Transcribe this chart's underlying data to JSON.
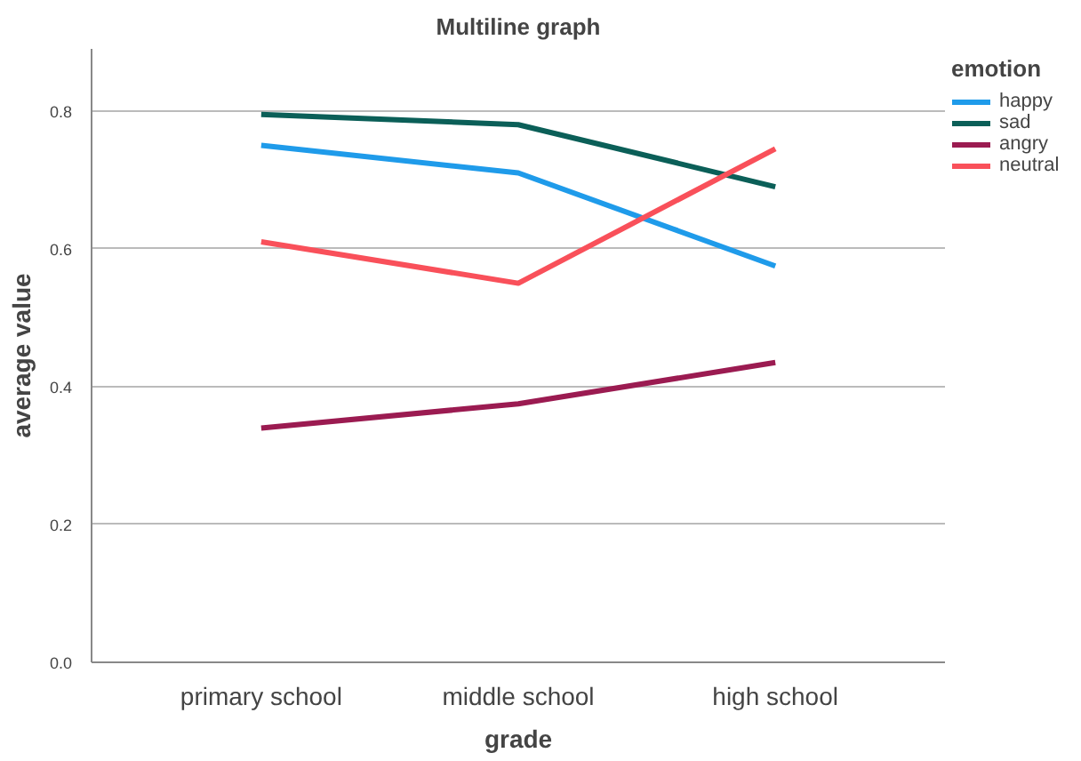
{
  "chart_data": {
    "type": "line",
    "title": "Multiline graph",
    "xlabel": "grade",
    "ylabel": "average value",
    "legend_title": "emotion",
    "categories": [
      "primary school",
      "middle school",
      "high school"
    ],
    "series": [
      {
        "name": "happy",
        "color": "#1f9bea",
        "values": [
          0.75,
          0.71,
          0.575
        ]
      },
      {
        "name": "sad",
        "color": "#0b5f58",
        "values": [
          0.795,
          0.78,
          0.69
        ]
      },
      {
        "name": "angry",
        "color": "#9b1b51",
        "values": [
          0.34,
          0.375,
          0.435
        ]
      },
      {
        "name": "neutral",
        "color": "#f9505a",
        "values": [
          0.61,
          0.55,
          0.745
        ]
      }
    ],
    "ylim": [
      0,
      0.89
    ],
    "yticks": [
      {
        "value": 0,
        "label": "0.0"
      },
      {
        "value": 0.2,
        "label": "0.2"
      },
      {
        "value": 0.4,
        "label": "0.4"
      },
      {
        "value": 0.6,
        "label": "0.6"
      },
      {
        "value": 0.8,
        "label": "0.8"
      }
    ],
    "grid": "y",
    "legend": "top right",
    "marker": "none",
    "line_style": "solid"
  }
}
